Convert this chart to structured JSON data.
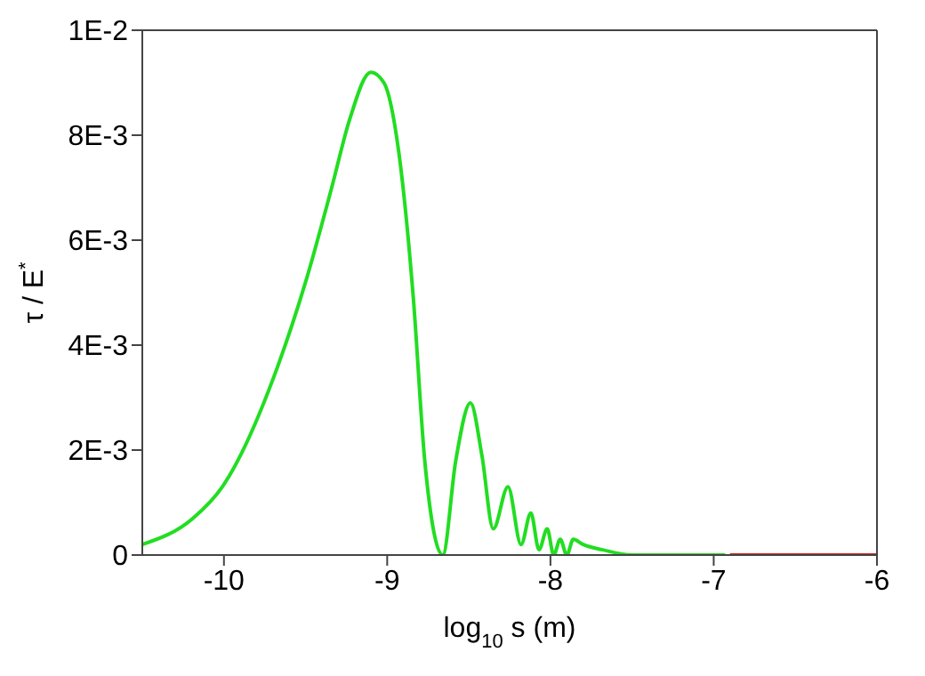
{
  "chart_data": {
    "type": "line",
    "xlabel": "log$_{10}$ s  (m)",
    "ylabel": "τ / E$^{*}$",
    "xlim": [
      -10.5,
      -6
    ],
    "xticks": [
      -10,
      -9,
      -8,
      -7,
      -6
    ],
    "ylim": [
      0,
      0.01
    ],
    "yticks": [
      0,
      {
        "value": 0.002,
        "label": "2E-3"
      },
      {
        "value": 0.004,
        "label": "4E-3"
      },
      {
        "value": 0.006,
        "label": "6E-3"
      },
      {
        "value": 0.008,
        "label": "8E-3"
      },
      {
        "value": 0.01,
        "label": "1E-2"
      }
    ],
    "legend": false,
    "marker": "none",
    "line_style": "solid",
    "series": [
      {
        "color": "#22dd22",
        "x": [
          -10.5,
          -10.19,
          -10.01,
          -9.67,
          -9.5,
          -9.34,
          -9.23,
          -9.1,
          -9.02,
          -8.93,
          -8.84,
          -8.77,
          -8.66,
          -8.58,
          -8.49,
          -8.42,
          -8.35,
          -8.26,
          -8.18,
          -8.12,
          -8.07,
          -8.02,
          -7.98,
          -7.94,
          -7.9,
          -7.86,
          -7.8,
          -7.68,
          -7.5,
          -7.02,
          -6.93
        ],
        "values": [
          0.0002,
          0.0007,
          0.0013,
          0.0036,
          0.0052,
          0.007,
          0.0083,
          0.0092,
          0.009,
          0.0077,
          0.0049,
          0.0018,
          0,
          0.0018,
          0.0029,
          0.0019,
          0.0005,
          0.0013,
          0.0002,
          0.0008,
          0.0001,
          0.0005,
          0,
          0.0003,
          0,
          0.0003,
          0.0002,
          0.0001,
          0,
          0,
          0
        ]
      },
      {
        "color": "#e02020",
        "x": [
          -6.9,
          -6.5,
          -6
        ],
        "values": [
          0,
          0,
          0
        ]
      }
    ]
  }
}
